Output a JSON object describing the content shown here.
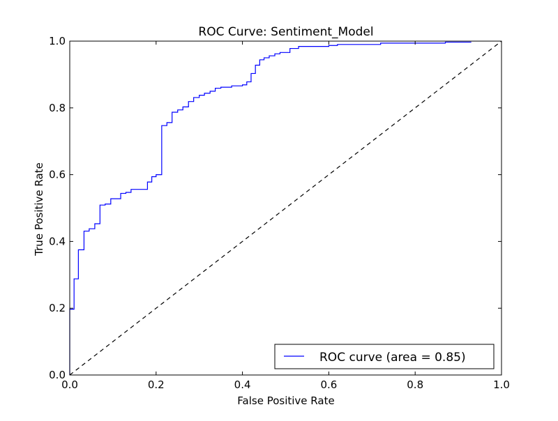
{
  "chart_data": {
    "type": "line",
    "title": "ROC Curve: Sentiment_Model",
    "xlabel": "False Positive Rate",
    "ylabel": "True Positive Rate",
    "xlim": [
      0.0,
      1.0
    ],
    "ylim": [
      0.0,
      1.0
    ],
    "xticks": [
      0.0,
      0.2,
      0.4,
      0.6,
      0.8,
      1.0
    ],
    "yticks": [
      0.0,
      0.2,
      0.4,
      0.6,
      0.8,
      1.0
    ],
    "xtick_labels": [
      "0.0",
      "0.2",
      "0.4",
      "0.6",
      "0.8",
      "1.0"
    ],
    "ytick_labels": [
      "0.0",
      "0.2",
      "0.4",
      "0.6",
      "0.8",
      "1.0"
    ],
    "grid": false,
    "legend_position": "lower-right",
    "series": [
      {
        "name": "ROC curve (area = 0.85)",
        "color": "#0000ff",
        "style": "solid",
        "x": [
          0.0,
          0.0,
          0.0,
          0.01,
          0.01,
          0.02,
          0.02,
          0.033,
          0.033,
          0.045,
          0.045,
          0.058,
          0.058,
          0.07,
          0.07,
          0.082,
          0.082,
          0.095,
          0.095,
          0.118,
          0.118,
          0.13,
          0.13,
          0.142,
          0.142,
          0.18,
          0.18,
          0.19,
          0.19,
          0.2,
          0.2,
          0.213,
          0.213,
          0.225,
          0.225,
          0.237,
          0.237,
          0.25,
          0.25,
          0.262,
          0.262,
          0.275,
          0.275,
          0.287,
          0.287,
          0.3,
          0.3,
          0.312,
          0.312,
          0.325,
          0.325,
          0.337,
          0.337,
          0.35,
          0.35,
          0.375,
          0.375,
          0.4,
          0.4,
          0.41,
          0.41,
          0.42,
          0.42,
          0.43,
          0.43,
          0.44,
          0.44,
          0.45,
          0.45,
          0.462,
          0.462,
          0.475,
          0.475,
          0.487,
          0.487,
          0.51,
          0.51,
          0.53,
          0.53,
          0.6,
          0.6,
          0.62,
          0.62,
          0.72,
          0.72,
          0.87,
          0.87,
          0.93
        ],
        "y": [
          0.0,
          0.06,
          0.197,
          0.197,
          0.288,
          0.288,
          0.375,
          0.375,
          0.431,
          0.431,
          0.438,
          0.438,
          0.453,
          0.453,
          0.509,
          0.509,
          0.512,
          0.512,
          0.528,
          0.528,
          0.544,
          0.544,
          0.547,
          0.547,
          0.556,
          0.556,
          0.578,
          0.578,
          0.594,
          0.594,
          0.6,
          0.6,
          0.747,
          0.747,
          0.756,
          0.756,
          0.787,
          0.787,
          0.794,
          0.794,
          0.803,
          0.803,
          0.819,
          0.819,
          0.831,
          0.831,
          0.838,
          0.838,
          0.844,
          0.844,
          0.85,
          0.85,
          0.859,
          0.859,
          0.862,
          0.862,
          0.866,
          0.866,
          0.869,
          0.869,
          0.878,
          0.878,
          0.903,
          0.903,
          0.928,
          0.928,
          0.944,
          0.944,
          0.95,
          0.95,
          0.956,
          0.956,
          0.962,
          0.962,
          0.966,
          0.966,
          0.978,
          0.978,
          0.984,
          0.984,
          0.987,
          0.987,
          0.99,
          0.99,
          0.994,
          0.994,
          0.997,
          0.997
        ]
      },
      {
        "name": "Chance diagonal",
        "color": "#000000",
        "style": "dashed",
        "x": [
          0.0,
          1.0
        ],
        "y": [
          0.0,
          1.0
        ]
      }
    ],
    "legend": {
      "label": "ROC curve (area = 0.85)"
    }
  }
}
